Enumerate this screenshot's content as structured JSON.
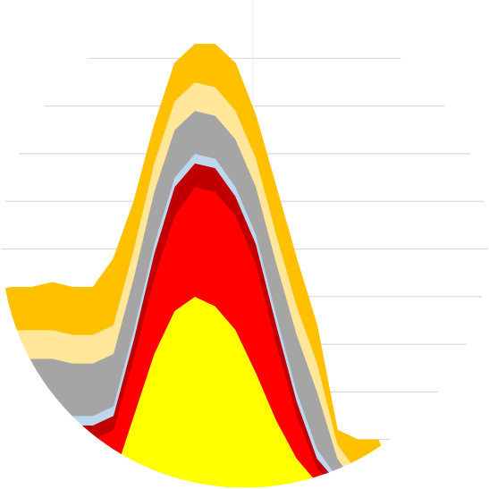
{
  "chart_data": {
    "type": "area",
    "stacked": true,
    "clip": "circle",
    "grid": true,
    "legend": "none",
    "x": [
      0,
      1,
      2,
      3,
      4,
      5,
      6,
      7,
      8,
      9,
      10,
      11,
      12,
      13,
      14,
      15,
      16,
      17,
      18,
      19,
      20,
      21,
      22,
      23,
      24,
      25
    ],
    "ylim": [
      0,
      100
    ],
    "series": [
      {
        "color": "#FFFF00",
        "values": [
          0,
          0,
          0,
          0,
          0,
          0,
          2,
          15,
          28,
          37,
          40,
          38,
          33,
          24,
          14,
          6,
          1,
          0,
          0,
          0,
          0,
          0,
          0,
          0,
          0,
          0
        ]
      },
      {
        "color": "#FF0000",
        "values": [
          12,
          12,
          12,
          11,
          10,
          10,
          10,
          12,
          16,
          20,
          23,
          24,
          24,
          23,
          16,
          9,
          3,
          0,
          0,
          0,
          0,
          0,
          0,
          0,
          0,
          0
        ]
      },
      {
        "color": "#C00000",
        "values": [
          3,
          3,
          3,
          3,
          3,
          3,
          3,
          4,
          5,
          6,
          5,
          5,
          4,
          4,
          4,
          3,
          2,
          1,
          0,
          0,
          0,
          0,
          0,
          0,
          0,
          0
        ]
      },
      {
        "color": "#BDD7EE",
        "values": [
          2,
          2,
          2,
          2,
          2,
          2,
          2,
          2,
          2,
          2,
          2,
          2,
          2,
          2,
          2,
          2,
          2,
          1,
          0,
          0,
          0,
          0,
          0,
          0,
          0,
          0
        ]
      },
      {
        "color": "#A5A5A5",
        "values": [
          10,
          10,
          10,
          11,
          11,
          11,
          11,
          11,
          11,
          10,
          9,
          9,
          10,
          10,
          11,
          12,
          12,
          4,
          0,
          0,
          0,
          0,
          0,
          0,
          0,
          0
        ]
      },
      {
        "color": "#FFE699",
        "values": [
          6,
          6,
          6,
          6,
          6,
          6,
          6,
          6,
          6,
          6,
          6,
          6,
          6,
          6,
          6,
          6,
          6,
          3,
          3,
          3,
          0,
          0,
          0,
          0,
          0,
          0
        ]
      },
      {
        "color": "#FFC000",
        "values": [
          8,
          9,
          9,
          10,
          10,
          10,
          14,
          10,
          8,
          8,
          8,
          9,
          10,
          9,
          10,
          10,
          8,
          3,
          7,
          7,
          0,
          0,
          0,
          0,
          0,
          0
        ]
      }
    ]
  }
}
